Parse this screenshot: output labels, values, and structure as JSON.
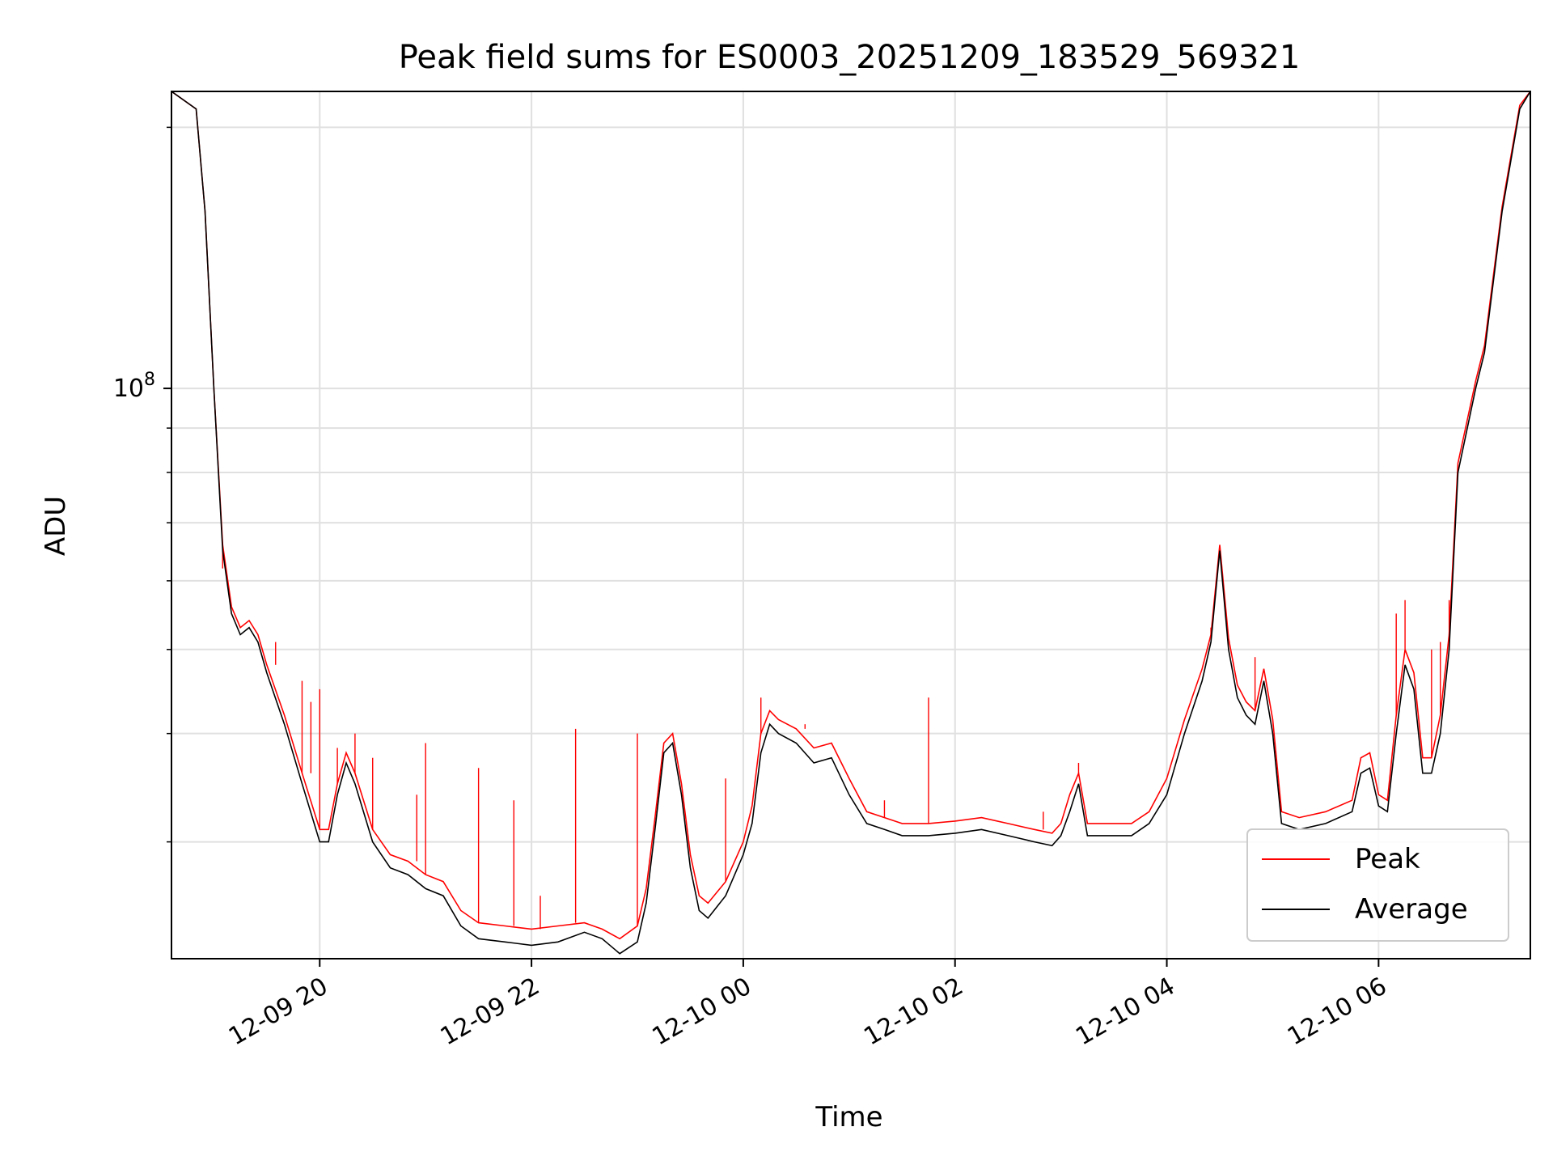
{
  "chart_data": {
    "type": "line",
    "title": "Peak field sums for ES0003_20251209_183529_569321",
    "xlabel": "Time",
    "ylabel": "ADU",
    "y_scale": "log",
    "grid": true,
    "legend_position": "lower-right",
    "ylim": [
      22000000,
      220000000
    ],
    "xlim": [
      "2025-12-09 18:36",
      "2025-12-10 07:26"
    ],
    "x_ticks": [
      {
        "value": "2025-12-09 20:00",
        "label": "12-09 20"
      },
      {
        "value": "2025-12-09 22:00",
        "label": "12-09 22"
      },
      {
        "value": "2025-12-10 00:00",
        "label": "12-10 00"
      },
      {
        "value": "2025-12-10 02:00",
        "label": "12-10 02"
      },
      {
        "value": "2025-12-10 04:00",
        "label": "12-10 04"
      },
      {
        "value": "2025-12-10 06:00",
        "label": "12-10 06"
      }
    ],
    "y_major_tick_label": {
      "base": "10",
      "exponent": "8",
      "value": 100000000
    },
    "y_minor_ticks": [
      30000000,
      40000000,
      50000000,
      60000000,
      70000000,
      80000000,
      90000000,
      200000000
    ],
    "series": [
      {
        "name": "Average",
        "color": "#000000",
        "points": [
          [
            "2025-12-09 18:36",
            220000000
          ],
          [
            "2025-12-09 18:50",
            210000000
          ],
          [
            "2025-12-09 18:55",
            160000000
          ],
          [
            "2025-12-09 19:00",
            100000000
          ],
          [
            "2025-12-09 19:05",
            65000000
          ],
          [
            "2025-12-09 19:10",
            55000000
          ],
          [
            "2025-12-09 19:15",
            52000000
          ],
          [
            "2025-12-09 19:20",
            53000000
          ],
          [
            "2025-12-09 19:25",
            51000000
          ],
          [
            "2025-12-09 19:30",
            47000000
          ],
          [
            "2025-12-09 19:40",
            41000000
          ],
          [
            "2025-12-09 19:50",
            35000000
          ],
          [
            "2025-12-09 20:00",
            30000000
          ],
          [
            "2025-12-09 20:05",
            30000000
          ],
          [
            "2025-12-09 20:10",
            34000000
          ],
          [
            "2025-12-09 20:15",
            37000000
          ],
          [
            "2025-12-09 20:20",
            35000000
          ],
          [
            "2025-12-09 20:30",
            30000000
          ],
          [
            "2025-12-09 20:40",
            28000000
          ],
          [
            "2025-12-09 20:50",
            27500000
          ],
          [
            "2025-12-09 21:00",
            26500000
          ],
          [
            "2025-12-09 21:10",
            26000000
          ],
          [
            "2025-12-09 21:20",
            24000000
          ],
          [
            "2025-12-09 21:30",
            23200000
          ],
          [
            "2025-12-09 21:45",
            23000000
          ],
          [
            "2025-12-09 22:00",
            22800000
          ],
          [
            "2025-12-09 22:15",
            23000000
          ],
          [
            "2025-12-09 22:30",
            23600000
          ],
          [
            "2025-12-09 22:40",
            23200000
          ],
          [
            "2025-12-09 22:50",
            22300000
          ],
          [
            "2025-12-09 23:00",
            23000000
          ],
          [
            "2025-12-09 23:05",
            25500000
          ],
          [
            "2025-12-09 23:10",
            31000000
          ],
          [
            "2025-12-09 23:15",
            38000000
          ],
          [
            "2025-12-09 23:20",
            39000000
          ],
          [
            "2025-12-09 23:25",
            34000000
          ],
          [
            "2025-12-09 23:30",
            28000000
          ],
          [
            "2025-12-09 23:35",
            25000000
          ],
          [
            "2025-12-09 23:40",
            24500000
          ],
          [
            "2025-12-09 23:50",
            26000000
          ],
          [
            "2025-12-10 00:00",
            29000000
          ],
          [
            "2025-12-10 00:05",
            31500000
          ],
          [
            "2025-12-10 00:10",
            38000000
          ],
          [
            "2025-12-10 00:15",
            41000000
          ],
          [
            "2025-12-10 00:20",
            40000000
          ],
          [
            "2025-12-10 00:30",
            39000000
          ],
          [
            "2025-12-10 00:40",
            37000000
          ],
          [
            "2025-12-10 00:50",
            37500000
          ],
          [
            "2025-12-10 01:00",
            34000000
          ],
          [
            "2025-12-10 01:10",
            31500000
          ],
          [
            "2025-12-10 01:20",
            31000000
          ],
          [
            "2025-12-10 01:30",
            30500000
          ],
          [
            "2025-12-10 01:45",
            30500000
          ],
          [
            "2025-12-10 02:00",
            30700000
          ],
          [
            "2025-12-10 02:15",
            31000000
          ],
          [
            "2025-12-10 02:30",
            30500000
          ],
          [
            "2025-12-10 02:45",
            30000000
          ],
          [
            "2025-12-10 02:55",
            29700000
          ],
          [
            "2025-12-10 03:00",
            30500000
          ],
          [
            "2025-12-10 03:05",
            32500000
          ],
          [
            "2025-12-10 03:10",
            35000000
          ],
          [
            "2025-12-10 03:15",
            30500000
          ],
          [
            "2025-12-10 03:25",
            30500000
          ],
          [
            "2025-12-10 03:40",
            30500000
          ],
          [
            "2025-12-10 03:50",
            31500000
          ],
          [
            "2025-12-10 04:00",
            34000000
          ],
          [
            "2025-12-10 04:10",
            40000000
          ],
          [
            "2025-12-10 04:20",
            46000000
          ],
          [
            "2025-12-10 04:25",
            51000000
          ],
          [
            "2025-12-10 04:30",
            65000000
          ],
          [
            "2025-12-10 04:35",
            50000000
          ],
          [
            "2025-12-10 04:40",
            44000000
          ],
          [
            "2025-12-10 04:45",
            42000000
          ],
          [
            "2025-12-10 04:50",
            41000000
          ],
          [
            "2025-12-10 04:55",
            46000000
          ],
          [
            "2025-12-10 05:00",
            40000000
          ],
          [
            "2025-12-10 05:05",
            31500000
          ],
          [
            "2025-12-10 05:15",
            31000000
          ],
          [
            "2025-12-10 05:30",
            31500000
          ],
          [
            "2025-12-10 05:45",
            32500000
          ],
          [
            "2025-12-10 05:50",
            36000000
          ],
          [
            "2025-12-10 05:55",
            36500000
          ],
          [
            "2025-12-10 06:00",
            33000000
          ],
          [
            "2025-12-10 06:05",
            32500000
          ],
          [
            "2025-12-10 06:10",
            40000000
          ],
          [
            "2025-12-10 06:15",
            48000000
          ],
          [
            "2025-12-10 06:20",
            45000000
          ],
          [
            "2025-12-10 06:25",
            36000000
          ],
          [
            "2025-12-10 06:30",
            36000000
          ],
          [
            "2025-12-10 06:35",
            40000000
          ],
          [
            "2025-12-10 06:40",
            50000000
          ],
          [
            "2025-12-10 06:45",
            80000000
          ],
          [
            "2025-12-10 06:55",
            100000000
          ],
          [
            "2025-12-10 07:00",
            110000000
          ],
          [
            "2025-12-10 07:10",
            160000000
          ],
          [
            "2025-12-10 07:20",
            210000000
          ],
          [
            "2025-12-10 07:26",
            220000000
          ]
        ]
      },
      {
        "name": "Peak",
        "color": "#ff0000",
        "points": [
          [
            "2025-12-09 18:36",
            220000000
          ],
          [
            "2025-12-09 18:50",
            210000000
          ],
          [
            "2025-12-09 18:55",
            160000000
          ],
          [
            "2025-12-09 19:00",
            100000000
          ],
          [
            "2025-12-09 19:05",
            66000000
          ],
          [
            "2025-12-09 19:10",
            56000000
          ],
          [
            "2025-12-09 19:15",
            53000000
          ],
          [
            "2025-12-09 19:20",
            54000000
          ],
          [
            "2025-12-09 19:25",
            52000000
          ],
          [
            "2025-12-09 19:30",
            48000000
          ],
          [
            "2025-12-09 19:40",
            42000000
          ],
          [
            "2025-12-09 19:50",
            36000000
          ],
          [
            "2025-12-09 20:00",
            31000000
          ],
          [
            "2025-12-09 20:05",
            31000000
          ],
          [
            "2025-12-09 20:10",
            35000000
          ],
          [
            "2025-12-09 20:15",
            38000000
          ],
          [
            "2025-12-09 20:20",
            36000000
          ],
          [
            "2025-12-09 20:30",
            31000000
          ],
          [
            "2025-12-09 20:40",
            29000000
          ],
          [
            "2025-12-09 20:50",
            28500000
          ],
          [
            "2025-12-09 21:00",
            27500000
          ],
          [
            "2025-12-09 21:10",
            27000000
          ],
          [
            "2025-12-09 21:20",
            25000000
          ],
          [
            "2025-12-09 21:30",
            24200000
          ],
          [
            "2025-12-09 21:45",
            24000000
          ],
          [
            "2025-12-09 22:00",
            23800000
          ],
          [
            "2025-12-09 22:15",
            24000000
          ],
          [
            "2025-12-09 22:30",
            24200000
          ],
          [
            "2025-12-09 22:40",
            23800000
          ],
          [
            "2025-12-09 22:50",
            23200000
          ],
          [
            "2025-12-09 23:00",
            24000000
          ],
          [
            "2025-12-09 23:05",
            26500000
          ],
          [
            "2025-12-09 23:10",
            32000000
          ],
          [
            "2025-12-09 23:15",
            39000000
          ],
          [
            "2025-12-09 23:20",
            40000000
          ],
          [
            "2025-12-09 23:25",
            35000000
          ],
          [
            "2025-12-09 23:30",
            29000000
          ],
          [
            "2025-12-09 23:35",
            26000000
          ],
          [
            "2025-12-09 23:40",
            25500000
          ],
          [
            "2025-12-09 23:50",
            27000000
          ],
          [
            "2025-12-10 00:00",
            30000000
          ],
          [
            "2025-12-10 00:05",
            33000000
          ],
          [
            "2025-12-10 00:10",
            40000000
          ],
          [
            "2025-12-10 00:15",
            42500000
          ],
          [
            "2025-12-10 00:20",
            41500000
          ],
          [
            "2025-12-10 00:30",
            40500000
          ],
          [
            "2025-12-10 00:40",
            38500000
          ],
          [
            "2025-12-10 00:50",
            39000000
          ],
          [
            "2025-12-10 01:00",
            35500000
          ],
          [
            "2025-12-10 01:10",
            32500000
          ],
          [
            "2025-12-10 01:20",
            32000000
          ],
          [
            "2025-12-10 01:30",
            31500000
          ],
          [
            "2025-12-10 01:45",
            31500000
          ],
          [
            "2025-12-10 02:00",
            31700000
          ],
          [
            "2025-12-10 02:15",
            32000000
          ],
          [
            "2025-12-10 02:30",
            31500000
          ],
          [
            "2025-12-10 02:45",
            31000000
          ],
          [
            "2025-12-10 02:55",
            30700000
          ],
          [
            "2025-12-10 03:00",
            31500000
          ],
          [
            "2025-12-10 03:05",
            34000000
          ],
          [
            "2025-12-10 03:10",
            36000000
          ],
          [
            "2025-12-10 03:15",
            31500000
          ],
          [
            "2025-12-10 03:25",
            31500000
          ],
          [
            "2025-12-10 03:40",
            31500000
          ],
          [
            "2025-12-10 03:50",
            32500000
          ],
          [
            "2025-12-10 04:00",
            35500000
          ],
          [
            "2025-12-10 04:10",
            41500000
          ],
          [
            "2025-12-10 04:20",
            47500000
          ],
          [
            "2025-12-10 04:25",
            52000000
          ],
          [
            "2025-12-10 04:30",
            66000000
          ],
          [
            "2025-12-10 04:35",
            51500000
          ],
          [
            "2025-12-10 04:40",
            45500000
          ],
          [
            "2025-12-10 04:45",
            43500000
          ],
          [
            "2025-12-10 04:50",
            42500000
          ],
          [
            "2025-12-10 04:55",
            47500000
          ],
          [
            "2025-12-10 05:00",
            41500000
          ],
          [
            "2025-12-10 05:05",
            32500000
          ],
          [
            "2025-12-10 05:15",
            32000000
          ],
          [
            "2025-12-10 05:30",
            32500000
          ],
          [
            "2025-12-10 05:45",
            33500000
          ],
          [
            "2025-12-10 05:50",
            37500000
          ],
          [
            "2025-12-10 05:55",
            38000000
          ],
          [
            "2025-12-10 06:00",
            34000000
          ],
          [
            "2025-12-10 06:05",
            33500000
          ],
          [
            "2025-12-10 06:10",
            42000000
          ],
          [
            "2025-12-10 06:15",
            50000000
          ],
          [
            "2025-12-10 06:20",
            47000000
          ],
          [
            "2025-12-10 06:25",
            37500000
          ],
          [
            "2025-12-10 06:30",
            37500000
          ],
          [
            "2025-12-10 06:35",
            42000000
          ],
          [
            "2025-12-10 06:40",
            52000000
          ],
          [
            "2025-12-10 06:45",
            82000000
          ],
          [
            "2025-12-10 06:55",
            102000000
          ],
          [
            "2025-12-10 07:00",
            112000000
          ],
          [
            "2025-12-10 07:10",
            162000000
          ],
          [
            "2025-12-10 07:20",
            212000000
          ],
          [
            "2025-12-10 07:26",
            220000000
          ]
        ],
        "spikes": [
          [
            "2025-12-09 19:05",
            62000000
          ],
          [
            "2025-12-09 19:35",
            51000000
          ],
          [
            "2025-12-09 19:50",
            46000000
          ],
          [
            "2025-12-09 19:55",
            43500000
          ],
          [
            "2025-12-09 20:00",
            45000000
          ],
          [
            "2025-12-09 20:10",
            38500000
          ],
          [
            "2025-12-09 20:20",
            40000000
          ],
          [
            "2025-12-09 20:30",
            37500000
          ],
          [
            "2025-12-09 20:55",
            34000000
          ],
          [
            "2025-12-09 21:00",
            39000000
          ],
          [
            "2025-12-09 21:30",
            36500000
          ],
          [
            "2025-12-09 21:50",
            33500000
          ],
          [
            "2025-12-09 22:05",
            26000000
          ],
          [
            "2025-12-09 22:25",
            40500000
          ],
          [
            "2025-12-09 23:00",
            40000000
          ],
          [
            "2025-12-09 23:50",
            35500000
          ],
          [
            "2025-12-10 00:10",
            44000000
          ],
          [
            "2025-12-10 00:35",
            41000000
          ],
          [
            "2025-12-10 01:20",
            33500000
          ],
          [
            "2025-12-10 01:45",
            44000000
          ],
          [
            "2025-12-10 02:50",
            32500000
          ],
          [
            "2025-12-10 03:10",
            37000000
          ],
          [
            "2025-12-10 04:25",
            53000000
          ],
          [
            "2025-12-10 04:50",
            49000000
          ],
          [
            "2025-12-10 06:10",
            55000000
          ],
          [
            "2025-12-10 06:15",
            57000000
          ],
          [
            "2025-12-10 06:30",
            50000000
          ],
          [
            "2025-12-10 06:35",
            51000000
          ],
          [
            "2025-12-10 06:40",
            57000000
          ]
        ]
      }
    ]
  }
}
